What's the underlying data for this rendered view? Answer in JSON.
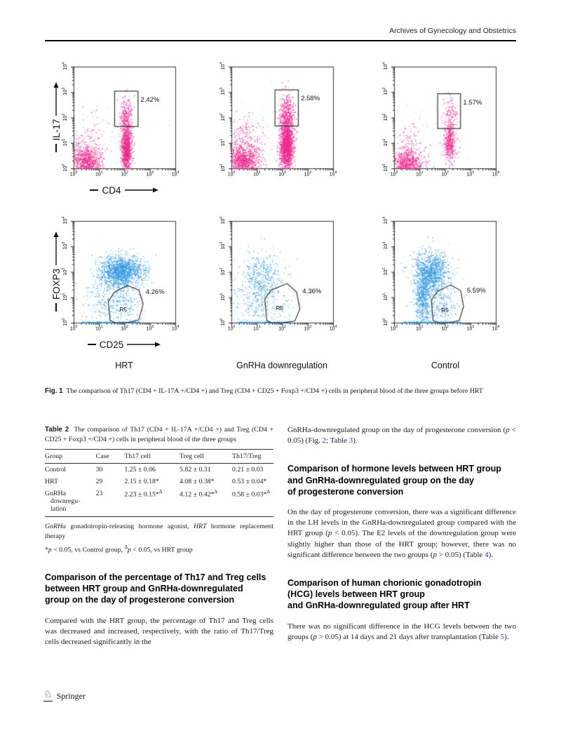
{
  "page": {
    "journal": "Archives of Gynecology and Obstetrics"
  },
  "figure": {
    "column_labels": [
      "HRT",
      "GnRHa downregulation",
      "Control"
    ],
    "row1_y_label": "IL-17",
    "row1_x_label": "CD4",
    "row2_y_label": "FOXP3",
    "row2_x_label": "CD25",
    "caption_tag": "Fig. 1",
    "caption": "The comparison of Th17 (CD4 + IL-17A +/CD4 +) and Treg (CD4 + CD25 + Foxp3 +/CD4 +) cells in peripheral blood of the three groups before HRT"
  },
  "chart_data": {
    "type": "scatter",
    "scale": "log10",
    "axis_range": [
      1,
      10000
    ],
    "tick_base": "10",
    "axis_ticks": [
      0,
      1,
      2,
      3,
      4
    ],
    "plots": [
      {
        "name": "scatter-th17-hrt",
        "percent": "2.42%",
        "color": "#ee2a8e",
        "seed": 11,
        "gate": {
          "type": "rect",
          "x0": 1.6,
          "y0": 1.66,
          "x1": 2.52,
          "y1": 3.05
        },
        "pct_pos": [
          2.62,
          2.72
        ],
        "clusters": [
          {
            "cx": 0.45,
            "cy": 0.28,
            "sx": 0.3,
            "sy": 0.3,
            "n": 900
          },
          {
            "cx": 0.5,
            "cy": 1.0,
            "sx": 0.35,
            "sy": 0.45,
            "n": 150
          },
          {
            "cx": 2.05,
            "cy": 0.75,
            "sx": 0.1,
            "sy": 0.45,
            "n": 1100
          },
          {
            "cx": 2.05,
            "cy": 1.9,
            "sx": 0.13,
            "sy": 0.45,
            "n": 350
          },
          {
            "cx": 1.2,
            "cy": 1.6,
            "sx": 0.8,
            "sy": 0.7,
            "n": 50,
            "color": "#b9b9b9"
          }
        ]
      },
      {
        "name": "scatter-th17-gnrha",
        "percent": "2.58%",
        "color": "#ee2a8e",
        "seed": 22,
        "gate": {
          "type": "rect",
          "x0": 1.7,
          "y0": 1.68,
          "x1": 2.62,
          "y1": 3.1
        },
        "pct_pos": [
          2.72,
          2.78
        ],
        "clusters": [
          {
            "cx": 0.45,
            "cy": 0.3,
            "sx": 0.32,
            "sy": 0.32,
            "n": 1100
          },
          {
            "cx": 0.5,
            "cy": 1.1,
            "sx": 0.35,
            "sy": 0.5,
            "n": 250
          },
          {
            "cx": 2.15,
            "cy": 0.9,
            "sx": 0.13,
            "sy": 0.5,
            "n": 1800
          },
          {
            "cx": 2.15,
            "cy": 2.1,
            "sx": 0.15,
            "sy": 0.45,
            "n": 500
          },
          {
            "cx": 1.2,
            "cy": 1.7,
            "sx": 0.8,
            "sy": 0.7,
            "n": 40,
            "color": "#b9b9b9"
          }
        ]
      },
      {
        "name": "scatter-th17-control",
        "percent": "1.57%",
        "color": "#ee2a8e",
        "seed": 33,
        "gate": {
          "type": "rect",
          "x0": 1.7,
          "y0": 1.58,
          "x1": 2.6,
          "y1": 2.95
        },
        "pct_pos": [
          2.7,
          2.62
        ],
        "clusters": [
          {
            "cx": 0.5,
            "cy": 0.22,
            "sx": 0.3,
            "sy": 0.25,
            "n": 800
          },
          {
            "cx": 0.55,
            "cy": 0.9,
            "sx": 0.3,
            "sy": 0.4,
            "n": 120
          },
          {
            "cx": 2.15,
            "cy": 1.0,
            "sx": 0.12,
            "sy": 0.35,
            "n": 450
          },
          {
            "cx": 2.2,
            "cy": 1.95,
            "sx": 0.15,
            "sy": 0.45,
            "n": 180
          },
          {
            "cx": 1.3,
            "cy": 1.6,
            "sx": 0.8,
            "sy": 0.7,
            "n": 35,
            "color": "#b9b9b9"
          }
        ]
      },
      {
        "name": "scatter-treg-hrt",
        "percent": "4.26%",
        "color": "#2f97e0",
        "seed": 44,
        "gate": {
          "type": "poly",
          "label": "R5",
          "points": [
            [
              1.42,
              0.1
            ],
            [
              1.35,
              0.85
            ],
            [
              1.6,
              1.22
            ],
            [
              2.1,
              1.48
            ],
            [
              2.55,
              1.3
            ],
            [
              2.72,
              0.75
            ],
            [
              2.55,
              0.12
            ],
            [
              2.05,
              0.0
            ],
            [
              1.65,
              0.0
            ]
          ],
          "label_pos": [
            1.95,
            0.55
          ]
        },
        "pct_pos": [
          2.82,
          1.22
        ],
        "clusters": [
          {
            "cx": 1.85,
            "cy": 2.05,
            "sx": 0.42,
            "sy": 0.3,
            "n": 1600
          },
          {
            "cx": 1.5,
            "cy": 1.0,
            "sx": 0.5,
            "sy": 0.45,
            "n": 350
          },
          {
            "cx": 2.0,
            "cy": 0.6,
            "sx": 0.35,
            "sy": 0.35,
            "n": 80
          },
          {
            "type": "baseline",
            "x0": 0.3,
            "x1": 2.6,
            "n": 250
          }
        ]
      },
      {
        "name": "scatter-treg-gnrha",
        "percent": "4.36%",
        "color": "#2f97e0",
        "seed": 55,
        "gate": {
          "type": "poly",
          "label": "R5",
          "points": [
            [
              1.38,
              0.1
            ],
            [
              1.3,
              0.95
            ],
            [
              1.55,
              1.3
            ],
            [
              2.18,
              1.55
            ],
            [
              2.55,
              1.22
            ],
            [
              2.68,
              0.55
            ],
            [
              2.48,
              0.08
            ],
            [
              1.95,
              0.0
            ],
            [
              1.6,
              0.0
            ]
          ],
          "label_pos": [
            1.9,
            0.58
          ]
        },
        "pct_pos": [
          2.78,
          1.25
        ],
        "clusters": [
          {
            "cx": 1.15,
            "cy": 1.75,
            "sx": 0.45,
            "sy": 0.55,
            "n": 500
          },
          {
            "cx": 1.0,
            "cy": 0.6,
            "sx": 0.45,
            "sy": 0.4,
            "n": 150
          },
          {
            "cx": 2.0,
            "cy": 0.6,
            "sx": 0.3,
            "sy": 0.3,
            "n": 40
          },
          {
            "type": "baseline",
            "x0": 0.2,
            "x1": 2.3,
            "n": 200
          }
        ]
      },
      {
        "name": "scatter-treg-control",
        "percent": "5.59%",
        "color": "#2f97e0",
        "seed": 66,
        "gate": {
          "type": "poly",
          "label": "R5",
          "points": [
            [
              1.52,
              0.1
            ],
            [
              1.45,
              0.9
            ],
            [
              1.7,
              1.25
            ],
            [
              2.2,
              1.5
            ],
            [
              2.6,
              1.28
            ],
            [
              2.72,
              0.65
            ],
            [
              2.55,
              0.1
            ],
            [
              2.1,
              0.0
            ],
            [
              1.75,
              0.0
            ]
          ],
          "label_pos": [
            2.0,
            0.5
          ]
        },
        "pct_pos": [
          2.85,
          1.28
        ],
        "clusters": [
          {
            "cx": 1.45,
            "cy": 2.0,
            "sx": 0.35,
            "sy": 0.4,
            "n": 1100
          },
          {
            "cx": 1.1,
            "cy": 1.0,
            "sx": 0.15,
            "sy": 0.6,
            "n": 600
          },
          {
            "cx": 1.6,
            "cy": 0.8,
            "sx": 0.4,
            "sy": 0.4,
            "n": 200
          },
          {
            "cx": 2.0,
            "cy": 0.6,
            "sx": 0.35,
            "sy": 0.3,
            "n": 60
          },
          {
            "type": "baseline",
            "x0": 0.3,
            "x1": 2.6,
            "n": 250
          }
        ]
      }
    ]
  },
  "table2": {
    "tag": "Table 2",
    "caption": "The comparison of Th17 (CD4 + IL-17A +/CD4 +) and Treg (CD4 + CD25 + Foxp3 +/CD4 +) cells in peripheral blood of the three groups",
    "headers": [
      "Group",
      "Case",
      "Th17 cell",
      "Treg cell",
      "Th17/Treg"
    ],
    "rows": [
      {
        "cells": [
          {
            "t": "Control"
          },
          {
            "t": "30"
          },
          {
            "t": "1.25 ± 0.06"
          },
          {
            "t": "5.82 ± 0.31"
          },
          {
            "t": "0.21 ± 0.03"
          }
        ]
      },
      {
        "cells": [
          {
            "t": "HRT"
          },
          {
            "t": "29"
          },
          {
            "t": "2.15 ± 0.18*"
          },
          {
            "t": "4.08 ± 0.38*"
          },
          {
            "t": "0.53 ± 0.04*"
          }
        ]
      },
      {
        "cells": [
          {
            "t": "GnRHa\ndownregu-\nlation",
            "wrap": 1
          },
          {
            "t": "23"
          },
          {
            "t": "2.23 ± 0.15*",
            "sup": "Δ"
          },
          {
            "t": "4.12 ± 0.42*",
            "sup": "Δ"
          },
          {
            "t": "0.58 ± 0.03*",
            "sup": "Δ"
          }
        ]
      }
    ],
    "footnote1": [
      {
        "t": "GnRHa",
        "i": 1
      },
      {
        "t": " gonadotropin-releasing hormone agonist, "
      },
      {
        "t": "HRT",
        "i": 1
      },
      {
        "t": " hormone replacement therapy"
      }
    ],
    "footnote2": [
      {
        "t": "*"
      },
      {
        "t": "p",
        "i": 1
      },
      {
        "t": " < 0.05, vs Control group, "
      },
      {
        "t": "Δ",
        "sup": 1
      },
      {
        "t": "p",
        "i": 1
      },
      {
        "t": " < 0.05, vs HRT group"
      }
    ]
  },
  "sections": {
    "left_heading": "Comparison of the percentage of Th17 and Treg cells\nbetween HRT group and GnRHa-downregulated\ngroup on the day of progesterone conversion",
    "left_para": [
      {
        "t": "Compared with the HRT group, the percentage of Th17 and Treg cells was decreased and increased, respectively, with the ratio of Th17/Treg cells decreased significantly in the"
      }
    ],
    "right_para1": [
      {
        "t": "GnRHa-downregulated group on the day of progesterone conversion ("
      },
      {
        "t": "p",
        "i": 1
      },
      {
        "t": " < 0.05) (Fig. "
      },
      {
        "t": "2",
        "link": 1
      },
      {
        "t": "; Table "
      },
      {
        "t": "3",
        "link": 1
      },
      {
        "t": ")."
      }
    ],
    "right_heading1": "Comparison of hormone levels between HRT group\nand GnRHa-downregulated group on the day\nof progesterone conversion",
    "right_para2": [
      {
        "t": "On the day of progesterone conversion, there was a significant difference in the LH levels in the GnRHa-downregulated group compared with the HRT group ("
      },
      {
        "t": "p",
        "i": 1
      },
      {
        "t": " < 0.05). The E2 levels of the downregulation group were slightly higher than those of the HRT group; however, there was no significant difference between the two groups ("
      },
      {
        "t": "p",
        "i": 1
      },
      {
        "t": " > 0.05) (Table "
      },
      {
        "t": "4",
        "link": 1
      },
      {
        "t": ")."
      }
    ],
    "right_heading2": "Comparison of human chorionic gonadotropin\n(HCG) levels between HRT group\nand GnRHa-downregulated group after HRT",
    "right_para3": [
      {
        "t": "There was no significant difference in the HCG levels between the two groups ("
      },
      {
        "t": "p",
        "i": 1
      },
      {
        "t": " > 0.05) at 14 days and 21 days after transplantation (Table "
      },
      {
        "t": "5",
        "link": 1
      },
      {
        "t": ")."
      }
    ]
  },
  "footer": {
    "publisher": "Springer",
    "logo": "springer-knight-icon"
  }
}
